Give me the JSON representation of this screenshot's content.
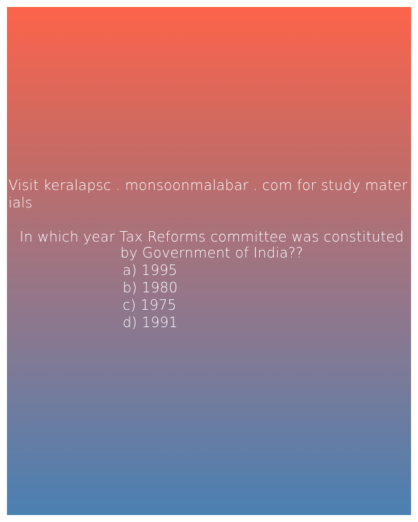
{
  "visit": {
    "text": "Visit keralapsc . monsoonmalabar . com for study materials"
  },
  "question": {
    "text": "In which year Tax Reforms committee was constituted by Government of India??",
    "options": [
      "a) 1995",
      "b) 1980",
      "c) 1975",
      "d) 1991"
    ]
  },
  "colors": {
    "gradient_top": "#fd634a",
    "gradient_bottom": "#4a80b2",
    "text": "#ffffff",
    "frame": "#ffffff"
  }
}
